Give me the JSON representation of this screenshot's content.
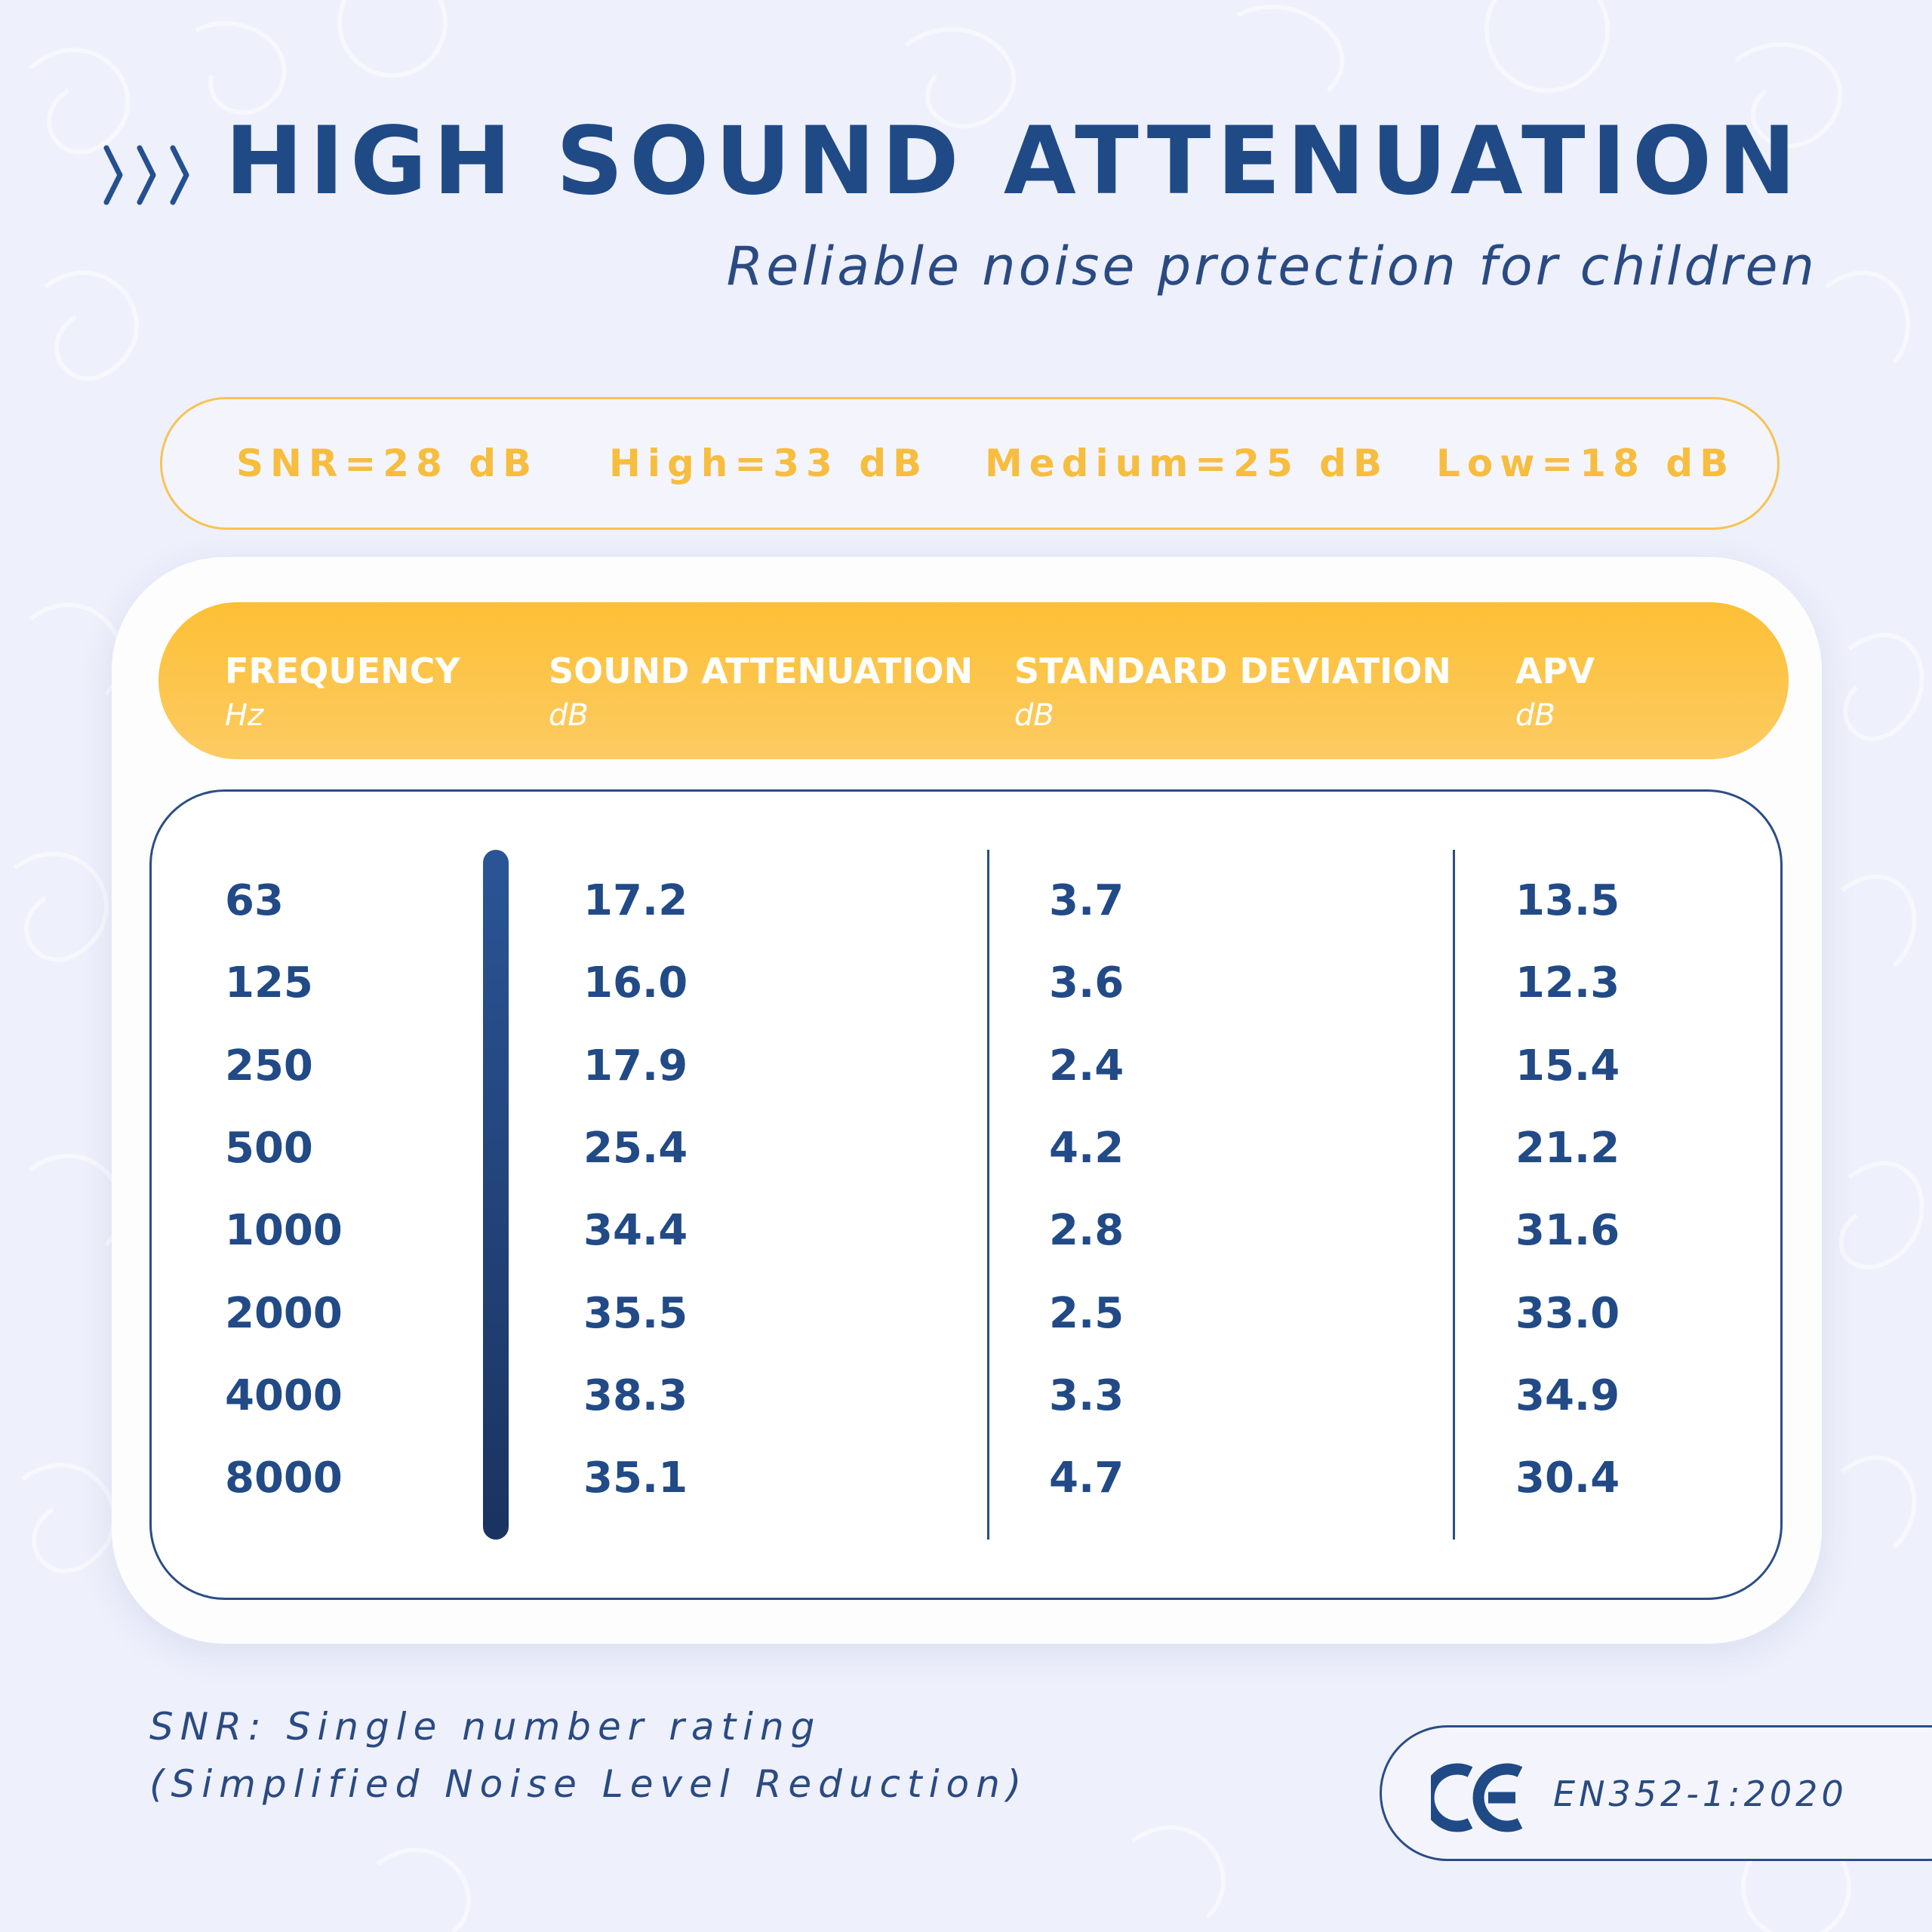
{
  "title": "HIGH SOUND ATTENUATION",
  "subtitle": "Reliable noise protection for children",
  "ratings": [
    "SNR=28 dB",
    "High=33 dB",
    "Medium=25 dB",
    "Low=18 dB"
  ],
  "table": {
    "columns": [
      {
        "label": "FREQUENCY",
        "unit": "Hz"
      },
      {
        "label": "SOUND ATTENUATION",
        "unit": "dB"
      },
      {
        "label": "STANDARD DEVIATION",
        "unit": "dB"
      },
      {
        "label": "APV",
        "unit": "dB"
      }
    ],
    "rows": [
      [
        "63",
        "17.2",
        "3.7",
        "13.5"
      ],
      [
        "125",
        "16.0",
        "3.6",
        "12.3"
      ],
      [
        "250",
        "17.9",
        "2.4",
        "15.4"
      ],
      [
        "500",
        "25.4",
        "4.2",
        "21.2"
      ],
      [
        "1000",
        "34.4",
        "2.8",
        "31.6"
      ],
      [
        "2000",
        "35.5",
        "2.5",
        "33.0"
      ],
      [
        "4000",
        "38.3",
        "3.3",
        "34.9"
      ],
      [
        "8000",
        "35.1",
        "4.7",
        "30.4"
      ]
    ]
  },
  "footnote": {
    "line1": "SNR: Single number rating",
    "line2": "(Simplified Noise Level Reduction)"
  },
  "certification": {
    "mark_icon": "ce-mark-icon",
    "standard": "EN352-1:2020"
  },
  "colors": {
    "navy": "#1f4a86",
    "accent_yellow": "#fdbf35",
    "background": "#eef0fb"
  }
}
